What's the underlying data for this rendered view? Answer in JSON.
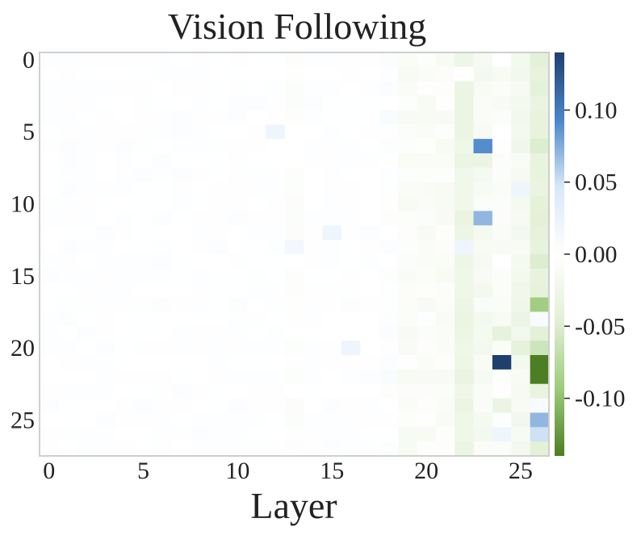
{
  "chart_data": {
    "type": "heatmap",
    "title": "Vision Following",
    "xlabel": "Layer",
    "ylabel": "",
    "n_cols": 27,
    "n_rows": 28,
    "x_ticks": [
      0,
      5,
      10,
      15,
      20,
      25
    ],
    "y_ticks": [
      0,
      5,
      10,
      15,
      20,
      25
    ],
    "colorbar": {
      "vmin": -0.14,
      "vmax": 0.14,
      "ticks": [
        0.1,
        0.05,
        0.0,
        -0.05,
        -0.1
      ],
      "tick_labels": [
        "0.10",
        "0.05",
        "0.00",
        "-0.05",
        "-0.10"
      ],
      "colormap": [
        "#1f3f6e",
        "#4a85c9",
        "#d8e8f8",
        "#ffffff",
        "#e2f0d6",
        "#9ccb7a",
        "#4c7f23"
      ]
    },
    "base_pattern": {
      "columns_0_to_17": "≈0.000 with small ±0.005 noise (mostly faint blue)",
      "column_13": -0.004,
      "columns_19_to_21": -0.01,
      "column_22": -0.03,
      "column_23": -0.015,
      "column_24": -0.008,
      "column_25": -0.02,
      "column_26": -0.04
    },
    "notable_cells": [
      {
        "layer": 23,
        "row": 6,
        "value": 0.09
      },
      {
        "layer": 23,
        "row": 11,
        "value": 0.07
      },
      {
        "layer": 24,
        "row": 21,
        "value": 0.14
      },
      {
        "layer": 12,
        "row": 5,
        "value": 0.02
      },
      {
        "layer": 15,
        "row": 12,
        "value": 0.02
      },
      {
        "layer": 13,
        "row": 13,
        "value": 0.015
      },
      {
        "layer": 16,
        "row": 20,
        "value": 0.02
      },
      {
        "layer": 22,
        "row": 13,
        "value": 0.02
      },
      {
        "layer": 25,
        "row": 9,
        "value": 0.02
      },
      {
        "layer": 24,
        "row": 26,
        "value": 0.02
      },
      {
        "layer": 26,
        "row": 17,
        "value": -0.09
      },
      {
        "layer": 26,
        "row": 21,
        "value": -0.14
      },
      {
        "layer": 26,
        "row": 22,
        "value": -0.14
      },
      {
        "layer": 26,
        "row": 18,
        "value": 0.01
      },
      {
        "layer": 26,
        "row": 25,
        "value": 0.07
      },
      {
        "layer": 26,
        "row": 26,
        "value": 0.05
      },
      {
        "layer": 26,
        "row": 24,
        "value": 0.01
      },
      {
        "layer": 22,
        "row": 1,
        "value": 0.0
      },
      {
        "layer": 23,
        "row": 7,
        "value": -0.03
      },
      {
        "layer": 25,
        "row": 7,
        "value": -0.01
      },
      {
        "layer": 25,
        "row": 18,
        "value": -0.03
      },
      {
        "layer": 25,
        "row": 20,
        "value": -0.04
      },
      {
        "layer": 26,
        "row": 20,
        "value": -0.06
      },
      {
        "layer": 24,
        "row": 19,
        "value": -0.04
      },
      {
        "layer": 24,
        "row": 24,
        "value": -0.03
      },
      {
        "layer": 26,
        "row": 14,
        "value": -0.05
      },
      {
        "layer": 26,
        "row": 6,
        "value": -0.05
      }
    ]
  }
}
